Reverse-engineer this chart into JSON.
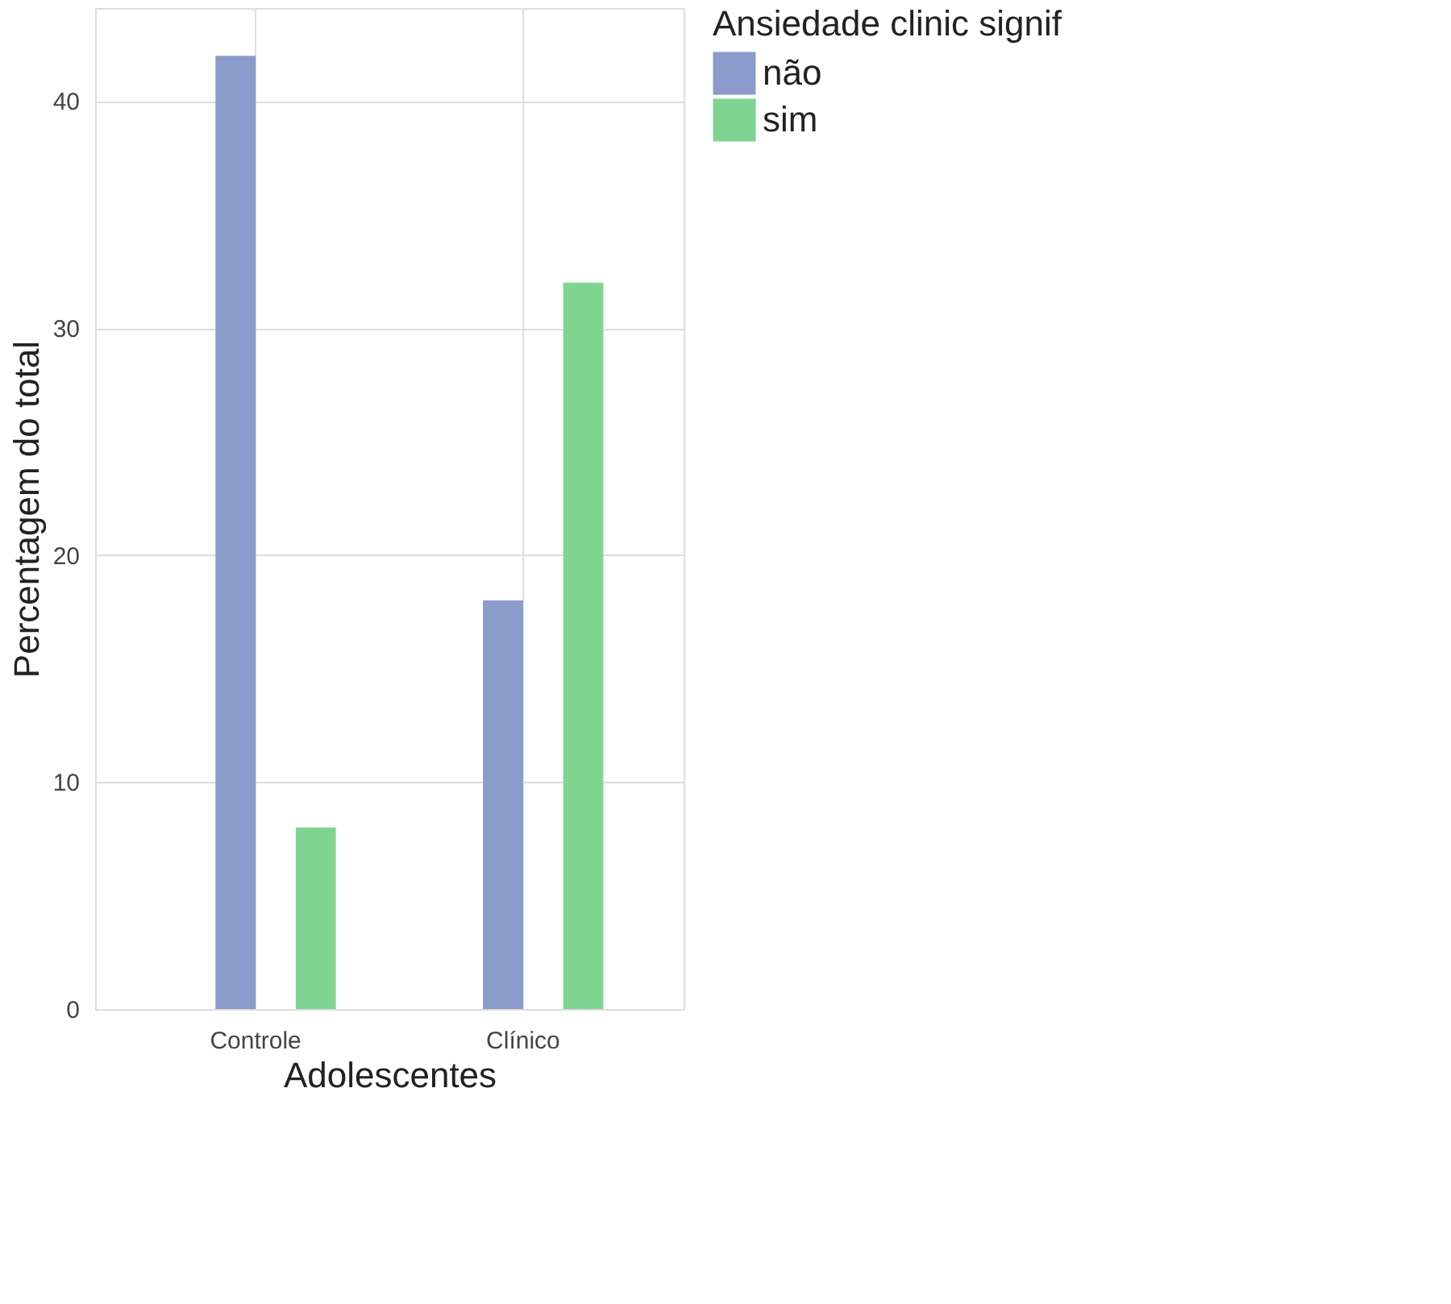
{
  "chart_data": {
    "type": "bar",
    "xlabel": "Adolescentes",
    "ylabel": "Percentagem do total",
    "legend_title": "Ansiedade clinic signif",
    "categories": [
      "Controle",
      "Clínico"
    ],
    "series": [
      {
        "name": "não",
        "color": "#8a9bcc",
        "values": [
          42,
          18
        ]
      },
      {
        "name": "sim",
        "color": "#80d492",
        "values": [
          8,
          32
        ]
      }
    ],
    "ylim": [
      0,
      44.1
    ],
    "yticks": [
      0,
      10,
      20,
      30,
      40
    ],
    "grid": true,
    "legend": "right"
  }
}
